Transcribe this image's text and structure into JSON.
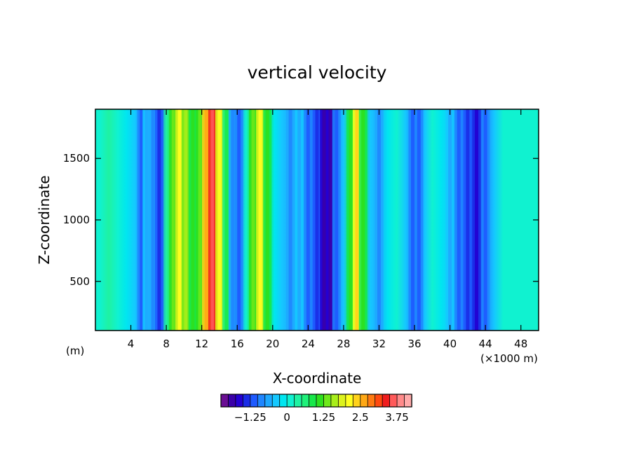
{
  "chart_data": {
    "type": "heatmap",
    "title": "vertical velocity",
    "xlabel": "X-coordinate",
    "ylabel": "Z-coordinate",
    "x_unit_left": "(m)",
    "x_unit_right": "(×1000 m)",
    "xlim": [
      0,
      50
    ],
    "ylim": [
      100,
      1900
    ],
    "x_ticks": [
      4,
      8,
      12,
      16,
      20,
      24,
      28,
      32,
      36,
      40,
      44,
      48
    ],
    "y_ticks": [
      500,
      1000,
      1500
    ],
    "colorbar": {
      "tick_labels": [
        "−1.25",
        "0",
        "1.25",
        "2.5",
        "3.75"
      ],
      "tick_values": [
        -1.25,
        0,
        1.25,
        2.5,
        3.75
      ],
      "levels_min": -2.25,
      "level_step": 0.25,
      "colors": [
        "#6a0e93",
        "#3a00a8",
        "#2400d2",
        "#1a2ce6",
        "#1e5aff",
        "#1f86ff",
        "#1ea8ff",
        "#15c8ff",
        "#00e6f0",
        "#10f2d0",
        "#1ff2a2",
        "#1ff07a",
        "#18e84a",
        "#2ee01e",
        "#6ee81a",
        "#a8ee1a",
        "#dcf21c",
        "#ffff1f",
        "#ffd21a",
        "#ffa815",
        "#ff7a12",
        "#ff4a10",
        "#f01e1e",
        "#ff5a5a",
        "#ff8a8a",
        "#ffaaaa"
      ]
    },
    "columns": [
      {
        "x": 0.5,
        "w": 0.0
      },
      {
        "x": 1.5,
        "w": 0.4
      },
      {
        "x": 2.5,
        "w": 0.1
      },
      {
        "x": 3.5,
        "w": -0.2
      },
      {
        "x": 4.5,
        "w": -0.4
      },
      {
        "x": 5.2,
        "w": -0.9
      },
      {
        "x": 5.8,
        "w": -0.5
      },
      {
        "x": 6.5,
        "w": -0.7
      },
      {
        "x": 7.2,
        "w": -1.2
      },
      {
        "x": 8.0,
        "w": 0.3
      },
      {
        "x": 8.8,
        "w": 1.0
      },
      {
        "x": 9.5,
        "w": 1.8
      },
      {
        "x": 10.2,
        "w": 1.4
      },
      {
        "x": 11.0,
        "w": 0.9
      },
      {
        "x": 11.8,
        "w": 1.2
      },
      {
        "x": 12.5,
        "w": 2.3
      },
      {
        "x": 13.2,
        "w": 3.4
      },
      {
        "x": 14.0,
        "w": 1.9
      },
      {
        "x": 14.8,
        "w": 0.6
      },
      {
        "x": 15.5,
        "w": -0.6
      },
      {
        "x": 16.2,
        "w": -1.0
      },
      {
        "x": 17.0,
        "w": 0.2
      },
      {
        "x": 17.8,
        "w": 1.0
      },
      {
        "x": 18.6,
        "w": 1.9
      },
      {
        "x": 19.4,
        "w": 0.8
      },
      {
        "x": 20.2,
        "w": -0.2
      },
      {
        "x": 21.0,
        "w": -0.4
      },
      {
        "x": 22.0,
        "w": -0.6
      },
      {
        "x": 23.0,
        "w": -0.5
      },
      {
        "x": 24.0,
        "w": -0.8
      },
      {
        "x": 25.0,
        "w": -1.2
      },
      {
        "x": 25.8,
        "w": -1.6
      },
      {
        "x": 26.5,
        "w": -1.7
      },
      {
        "x": 27.2,
        "w": -1.0
      },
      {
        "x": 28.0,
        "w": -0.3
      },
      {
        "x": 28.8,
        "w": 0.8
      },
      {
        "x": 29.5,
        "w": 2.2
      },
      {
        "x": 30.2,
        "w": 0.9
      },
      {
        "x": 31.0,
        "w": -0.3
      },
      {
        "x": 32.0,
        "w": -0.6
      },
      {
        "x": 33.0,
        "w": -0.2
      },
      {
        "x": 34.0,
        "w": 0.1
      },
      {
        "x": 35.0,
        "w": -0.4
      },
      {
        "x": 35.8,
        "w": -1.0
      },
      {
        "x": 36.5,
        "w": -0.8
      },
      {
        "x": 37.2,
        "w": -0.3
      },
      {
        "x": 38.0,
        "w": 0.2
      },
      {
        "x": 39.0,
        "w": -0.2
      },
      {
        "x": 40.0,
        "w": -0.5
      },
      {
        "x": 41.0,
        "w": -0.9
      },
      {
        "x": 42.0,
        "w": -1.1
      },
      {
        "x": 43.0,
        "w": -1.3
      },
      {
        "x": 44.0,
        "w": -0.9
      },
      {
        "x": 45.0,
        "w": -0.3
      },
      {
        "x": 46.0,
        "w": 0.1
      },
      {
        "x": 47.0,
        "w": 0.0
      },
      {
        "x": 48.0,
        "w": 0.1
      },
      {
        "x": 49.0,
        "w": 0.0
      },
      {
        "x": 49.8,
        "w": 0.0
      }
    ]
  }
}
